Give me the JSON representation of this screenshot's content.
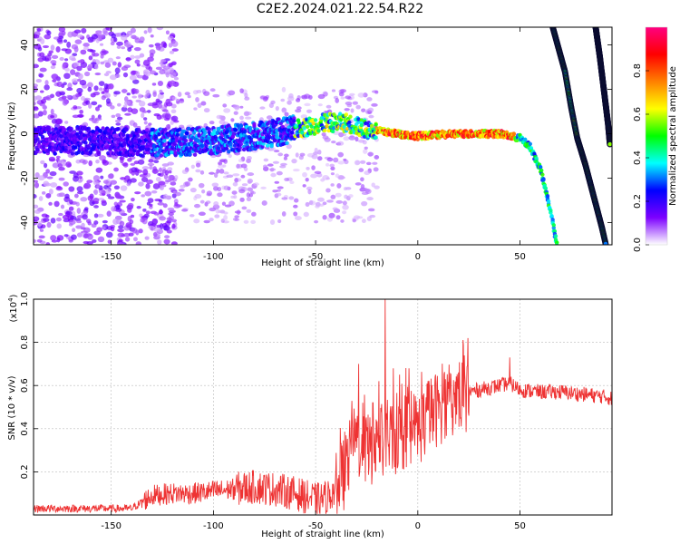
{
  "title": "C2E2.2024.021.22.54.R22",
  "chart_data": [
    {
      "type": "heatmap",
      "title": "C2E2.2024.021.22.54.R22",
      "xlabel": "Height of straight line (km)",
      "ylabel": "Frequency (Hz)",
      "xlim": [
        -188,
        95
      ],
      "ylim": [
        -50,
        48
      ],
      "xticks": [
        -150,
        -100,
        -50,
        0,
        50
      ],
      "xtick_labels": [
        "-150",
        "-100",
        "-50",
        "0",
        "50"
      ],
      "yticks": [
        40,
        20,
        0,
        -20,
        -40
      ],
      "ytick_labels": [
        "40",
        "20",
        "0",
        "-20",
        "-40"
      ],
      "ridge": {
        "x": [
          -185,
          -160,
          -140,
          -120,
          -100,
          -80,
          -60,
          -45,
          -35,
          -25,
          -10,
          0,
          20,
          40,
          50,
          55,
          60,
          65,
          68
        ],
        "y": [
          -3,
          -3,
          -4,
          -4,
          -3,
          -1,
          2,
          5,
          5,
          2,
          0,
          -1,
          0,
          0,
          -2,
          -6,
          -16,
          -35,
          -50
        ]
      },
      "streaks": [
        {
          "x": [
            66,
            72,
            75,
            78,
            82,
            86,
            90,
            92
          ],
          "y": [
            48,
            28,
            12,
            -2,
            -14,
            -28,
            -42,
            -50
          ]
        },
        {
          "x": [
            87,
            89,
            91,
            93,
            94
          ],
          "y": [
            48,
            35,
            20,
            5,
            -5
          ]
        }
      ],
      "colorbar": {
        "label": "Normalized spectral amplitude",
        "range": [
          0,
          1
        ],
        "ticks": [
          0,
          0.2,
          0.4,
          0.6,
          0.8
        ],
        "tick_labels": [
          "0.0",
          "0.2",
          "0.4",
          "0.6",
          "0.8"
        ],
        "colors": [
          "#ffffff",
          "#7c00ff",
          "#0000ff",
          "#00ffff",
          "#00ff00",
          "#ffff00",
          "#ff8000",
          "#ff0000",
          "#ff0080"
        ]
      }
    },
    {
      "type": "line",
      "xlabel": "Height of straight line (km)",
      "ylabel": "SNR (10 * v/v)",
      "yscale_note": "(x10",
      "yscale_exp": "4",
      "yscale_close": ")",
      "xlim": [
        -188,
        95
      ],
      "ylim": [
        0,
        1.0
      ],
      "xticks": [
        -150,
        -100,
        -50,
        0,
        50
      ],
      "xtick_labels": [
        "-150",
        "-100",
        "-50",
        "0",
        "50"
      ],
      "yticks": [
        0.2,
        0.4,
        0.6,
        0.8,
        1.0
      ],
      "ytick_labels": [
        "0.2",
        "0.4",
        "0.6",
        "0.8",
        "1.0"
      ],
      "color": "#ee3333",
      "series": [
        {
          "name": "SNR",
          "x": [
            -188,
            -170,
            -150,
            -140,
            -135,
            -130,
            -120,
            -110,
            -100,
            -90,
            -80,
            -70,
            -60,
            -50,
            -45,
            -40,
            -35,
            -30,
            -25,
            -20,
            -15,
            -10,
            -5,
            0,
            5,
            10,
            15,
            20,
            25,
            30,
            40,
            45,
            50,
            60,
            70,
            80,
            90,
            95
          ],
          "y": [
            0.03,
            0.03,
            0.03,
            0.03,
            0.06,
            0.09,
            0.1,
            0.1,
            0.11,
            0.12,
            0.13,
            0.12,
            0.1,
            0.07,
            0.08,
            0.12,
            0.22,
            0.35,
            0.3,
            0.32,
            0.36,
            0.35,
            0.4,
            0.4,
            0.45,
            0.5,
            0.52,
            0.55,
            0.57,
            0.58,
            0.6,
            0.61,
            0.58,
            0.57,
            0.57,
            0.56,
            0.55,
            0.54
          ]
        }
      ],
      "peaks": [
        {
          "x": -16,
          "y": 1.0
        },
        {
          "x": -22,
          "y": 0.52
        },
        {
          "x": -29,
          "y": 0.7
        },
        {
          "x": -30,
          "y": 0.43
        },
        {
          "x": -19,
          "y": 0.62
        },
        {
          "x": -9,
          "y": 0.65
        },
        {
          "x": -12,
          "y": 0.68
        },
        {
          "x": 5,
          "y": 0.62
        },
        {
          "x": 10,
          "y": 0.58
        },
        {
          "x": 45,
          "y": 0.73
        }
      ]
    }
  ]
}
